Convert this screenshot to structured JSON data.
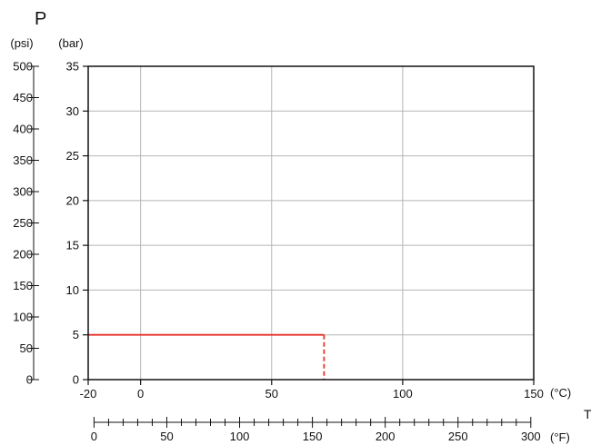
{
  "chart_data": {
    "type": "line",
    "title": "",
    "y_symbol": "P",
    "x_symbol": "T",
    "y_psi": {
      "unit": "(psi)",
      "range": [
        0,
        500
      ],
      "ticks": [
        0,
        50,
        100,
        150,
        200,
        250,
        300,
        350,
        400,
        450,
        500
      ]
    },
    "y_bar": {
      "unit": "(bar)",
      "range": [
        0,
        35
      ],
      "ticks": [
        0,
        5,
        10,
        15,
        20,
        25,
        30,
        35
      ]
    },
    "x_celsius": {
      "unit": "(°C)",
      "range": [
        -20,
        150
      ],
      "ticks": [
        -20,
        0,
        50,
        100,
        150
      ]
    },
    "x_fahrenheit": {
      "unit": "(°F)",
      "range": [
        0,
        300
      ],
      "labeled_ticks": [
        0,
        50,
        100,
        150,
        200,
        250,
        300
      ],
      "minor_step": 10
    },
    "grid": true,
    "series": [
      {
        "color": "#e8312a",
        "segments": [
          {
            "style": "solid",
            "points": [
              [
                -20,
                5
              ],
              [
                70,
                5
              ]
            ]
          },
          {
            "style": "dashed",
            "points": [
              [
                70,
                5
              ],
              [
                70,
                0
              ]
            ]
          }
        ]
      }
    ]
  }
}
